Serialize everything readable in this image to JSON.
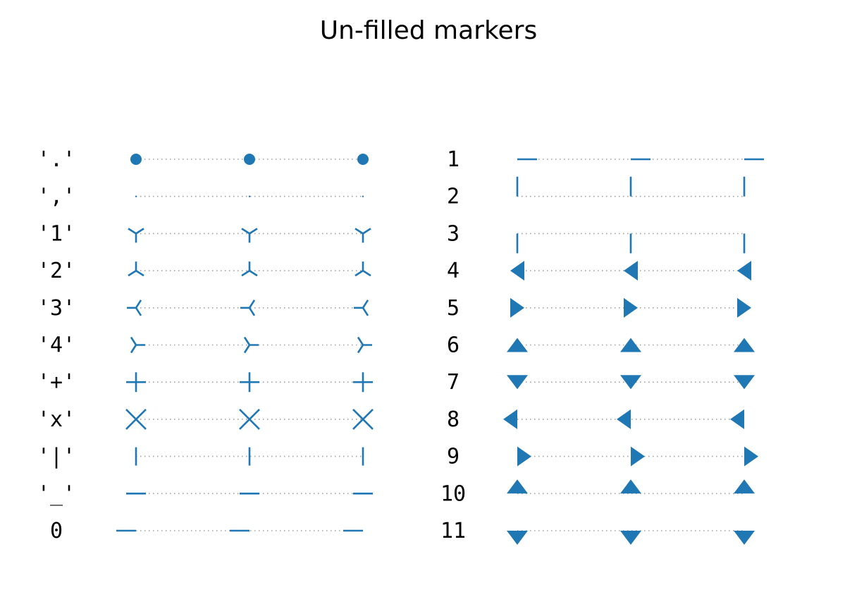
{
  "figure": {
    "title": "Un-filled markers"
  },
  "style": {
    "marker_color": "#1f77b4",
    "line_color": "#a0a0a0",
    "line_style": "dotted"
  },
  "chart_data": [
    {
      "type": "scatter",
      "panel": "left",
      "x": [
        0,
        1,
        2
      ],
      "grid": false,
      "axes_visible": false,
      "series": [
        {
          "label": "'.'",
          "marker": "point"
        },
        {
          "label": "','",
          "marker": "pixel"
        },
        {
          "label": "'1'",
          "marker": "tri_down"
        },
        {
          "label": "'2'",
          "marker": "tri_up"
        },
        {
          "label": "'3'",
          "marker": "tri_left"
        },
        {
          "label": "'4'",
          "marker": "tri_right"
        },
        {
          "label": "'+'",
          "marker": "plus"
        },
        {
          "label": "'x'",
          "marker": "x"
        },
        {
          "label": "'|'",
          "marker": "vline"
        },
        {
          "label": "'_'",
          "marker": "hline"
        },
        {
          "label": "0",
          "marker": "tickleft"
        }
      ]
    },
    {
      "type": "scatter",
      "panel": "right",
      "x": [
        0,
        1,
        2
      ],
      "grid": false,
      "axes_visible": false,
      "series": [
        {
          "label": "1",
          "marker": "tickright"
        },
        {
          "label": "2",
          "marker": "tickup"
        },
        {
          "label": "3",
          "marker": "tickdown"
        },
        {
          "label": "4",
          "marker": "caretleft"
        },
        {
          "label": "5",
          "marker": "caretright"
        },
        {
          "label": "6",
          "marker": "caretup"
        },
        {
          "label": "7",
          "marker": "caretdown"
        },
        {
          "label": "8",
          "marker": "caretleftbase"
        },
        {
          "label": "9",
          "marker": "caretrightbase"
        },
        {
          "label": "10",
          "marker": "caretupbase"
        },
        {
          "label": "11",
          "marker": "caretdownbase"
        }
      ]
    }
  ]
}
